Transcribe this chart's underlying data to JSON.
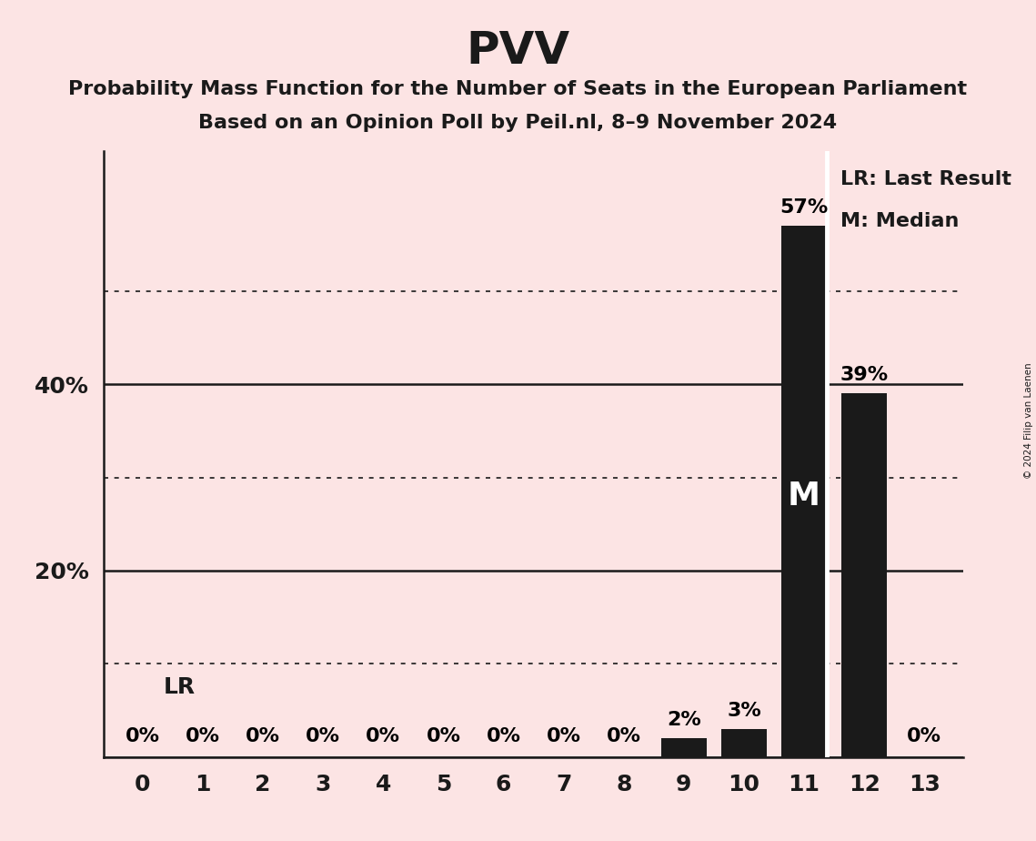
{
  "title": "PVV",
  "subtitle1": "Probability Mass Function for the Number of Seats in the European Parliament",
  "subtitle2": "Based on an Opinion Poll by Peil.nl, 8–9 November 2024",
  "copyright": "© 2024 Filip van Laenen",
  "categories": [
    0,
    1,
    2,
    3,
    4,
    5,
    6,
    7,
    8,
    9,
    10,
    11,
    12,
    13
  ],
  "values": [
    0,
    0,
    0,
    0,
    0,
    0,
    0,
    0,
    0,
    2,
    3,
    57,
    39,
    0
  ],
  "bar_color": "#1a1a1a",
  "background_color": "#fce4e4",
  "last_result": 11,
  "median": 11,
  "solid_lines": [
    0,
    20,
    40
  ],
  "dotted_lines": [
    10,
    30,
    50
  ],
  "ylim": [
    0,
    65
  ],
  "legend_lr": "LR: Last Result",
  "legend_m": "M: Median",
  "lr_label": "LR",
  "m_label": "M",
  "label_fontsize": 16,
  "tick_fontsize": 18,
  "title_fontsize": 36,
  "subtitle_fontsize": 16
}
